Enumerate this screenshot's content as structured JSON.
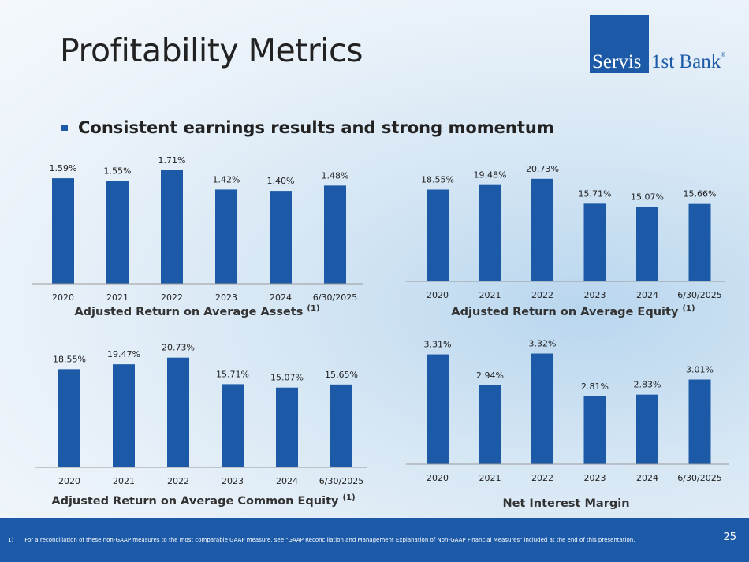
{
  "page": {
    "title": "Profitability Metrics",
    "logo": {
      "part1": "Servis",
      "part2": "1st Bank",
      "mark": "®"
    },
    "bullet": "Consistent earnings results and strong momentum",
    "footnote": {
      "number": "1)",
      "text": "For a reconciliation of these non-GAAP measures to the most comparable GAAP measure, see \"GAAP Reconciliation and Management Explanation of Non-GAAP Financial Measures\" included at the end of this presentation."
    },
    "page_number": "25",
    "colors": {
      "bar": "#1c5aa8",
      "brand": "#1c5aa8",
      "axis": "#999999"
    }
  },
  "chart_data": [
    {
      "type": "bar",
      "title": "Adjusted Return on Average Assets",
      "title_note": "(1)",
      "categories": [
        "2020",
        "2021",
        "2022",
        "2023",
        "2024",
        "6/30/2025"
      ],
      "values": [
        1.59,
        1.55,
        1.71,
        1.42,
        1.4,
        1.48
      ],
      "value_labels": [
        "1.59%",
        "1.55%",
        "1.71%",
        "1.42%",
        "1.40%",
        "1.48%"
      ],
      "ylim": [
        0,
        1.9
      ],
      "grid": false
    },
    {
      "type": "bar",
      "title": "Adjusted Return on Average Equity",
      "title_note": "(1)",
      "categories": [
        "2020",
        "2021",
        "2022",
        "2023",
        "2024",
        "6/30/2025"
      ],
      "values": [
        18.55,
        19.48,
        20.73,
        15.71,
        15.07,
        15.66
      ],
      "value_labels": [
        "18.55%",
        "19.48%",
        "20.73%",
        "15.71%",
        "15.07%",
        "15.66%"
      ],
      "ylim": [
        0,
        25
      ],
      "grid": false
    },
    {
      "type": "bar",
      "title": "Adjusted Return on Average Common Equity",
      "title_note": "(1)",
      "categories": [
        "2020",
        "2021",
        "2022",
        "2023",
        "2024",
        "6/30/2025"
      ],
      "values": [
        18.55,
        19.47,
        20.73,
        15.71,
        15.07,
        15.65
      ],
      "value_labels": [
        "18.55%",
        "19.47%",
        "20.73%",
        "15.71%",
        "15.07%",
        "15.65%"
      ],
      "ylim": [
        0,
        25
      ],
      "grid": false
    },
    {
      "type": "bar",
      "title": "Net Interest Margin",
      "title_note": "",
      "categories": [
        "2020",
        "2021",
        "2022",
        "2023",
        "2024",
        "6/30/2025"
      ],
      "values": [
        3.31,
        2.94,
        3.32,
        2.81,
        2.83,
        3.01
      ],
      "value_labels": [
        "3.31%",
        "2.94%",
        "3.32%",
        "2.81%",
        "2.83%",
        "3.01%"
      ],
      "ylim": [
        2.0,
        3.4
      ],
      "grid": false
    }
  ]
}
